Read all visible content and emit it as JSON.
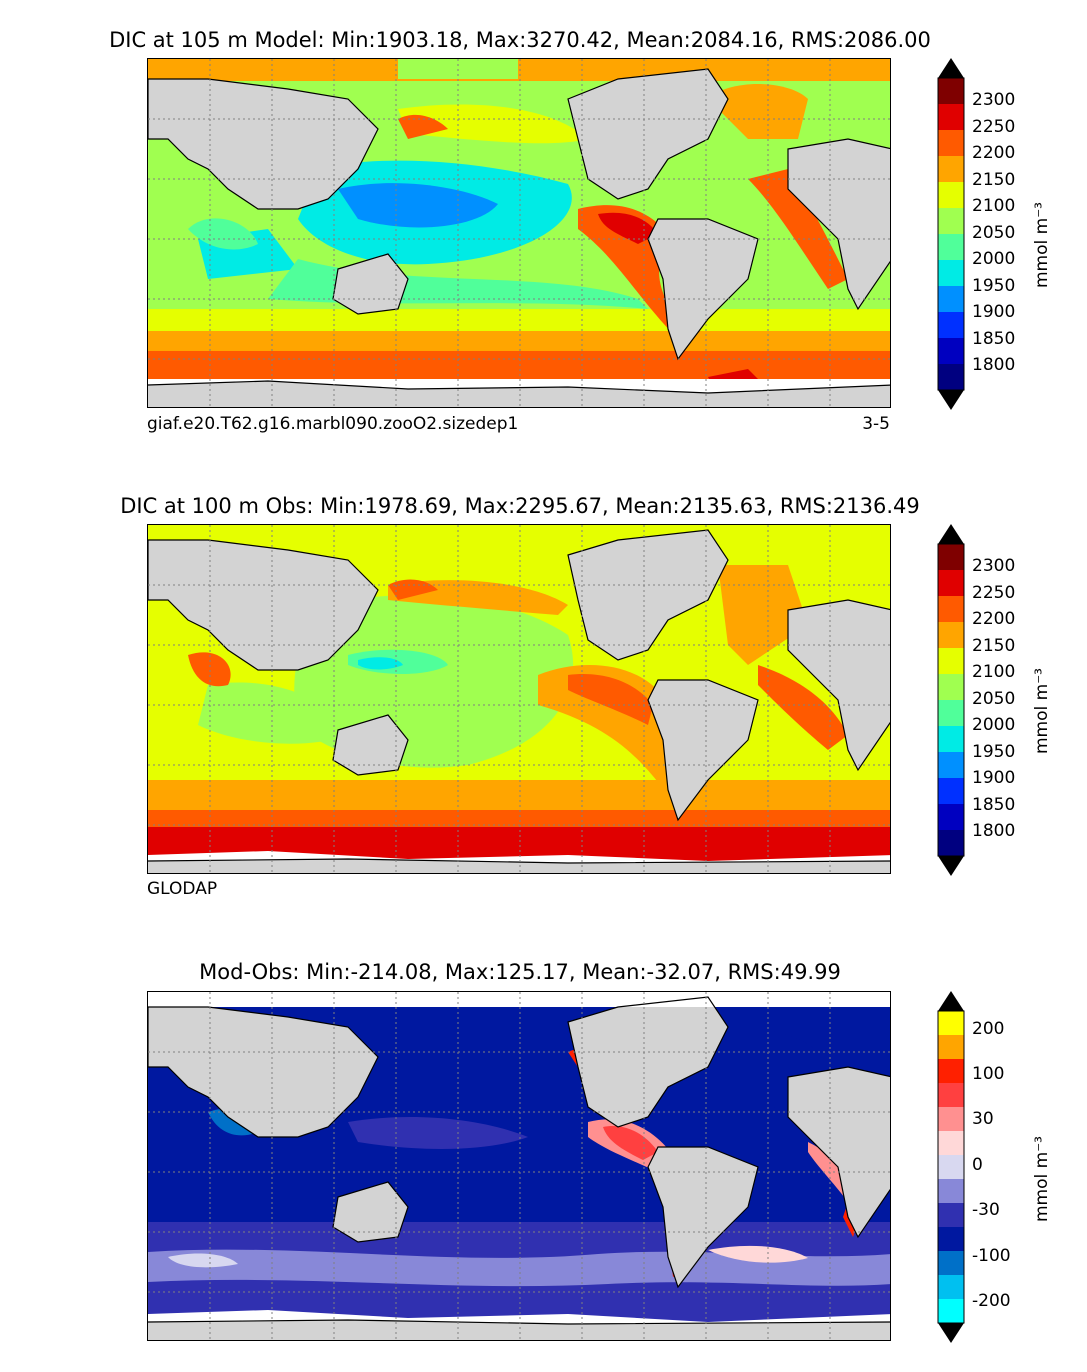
{
  "panels": [
    {
      "title": "DIC at 105 m Model: Min:1903.18, Max:3270.42, Mean:2084.16, RMS:2086.00",
      "caption_left": "giaf.e20.T62.g16.marbl090.zooO2.sizedep1",
      "caption_right": "3-5",
      "unit": "mmol m⁻³",
      "colorbar_ticks": [
        "2300",
        "2250",
        "2200",
        "2150",
        "2100",
        "2050",
        "2000",
        "1950",
        "1900",
        "1850",
        "1800"
      ],
      "colorbar_colors": [
        "#7f0000",
        "#e00000",
        "#ff5a00",
        "#ffa500",
        "#e5ff00",
        "#a0ff50",
        "#50ff9a",
        "#00ebe5",
        "#0090ff",
        "#0030ff",
        "#0000c0",
        "#000080"
      ]
    },
    {
      "title": "DIC at 100 m Obs: Min:1978.69, Max:2295.67, Mean:2135.63, RMS:2136.49",
      "caption_left": "GLODAP",
      "caption_right": "",
      "unit": "mmol m⁻³",
      "colorbar_ticks": [
        "2300",
        "2250",
        "2200",
        "2150",
        "2100",
        "2050",
        "2000",
        "1950",
        "1900",
        "1850",
        "1800"
      ],
      "colorbar_colors": [
        "#7f0000",
        "#e00000",
        "#ff5a00",
        "#ffa500",
        "#e5ff00",
        "#a0ff50",
        "#50ff9a",
        "#00ebe5",
        "#0090ff",
        "#0030ff",
        "#0000c0",
        "#000080"
      ]
    },
    {
      "title": "Mod-Obs: Min:-214.08, Max:125.17, Mean:-32.07, RMS:49.99",
      "caption_left": "",
      "caption_right": "",
      "unit": "mmol m⁻³",
      "colorbar_ticks": [
        "200",
        "100",
        "30",
        "0",
        "-30",
        "-100",
        "-200"
      ],
      "colorbar_colors": [
        "#ffff00",
        "#ffa500",
        "#ff2000",
        "#ff4040",
        "#ff9090",
        "#ffd8d8",
        "#d8d8f0",
        "#8888d8",
        "#3030b0",
        "#0018a0",
        "#0070c8",
        "#00c0f0",
        "#00ffff"
      ]
    }
  ],
  "colors": {
    "land": "#d3d3d3",
    "coast": "#000000",
    "grid": "#808080",
    "ice": "#ffffff"
  }
}
